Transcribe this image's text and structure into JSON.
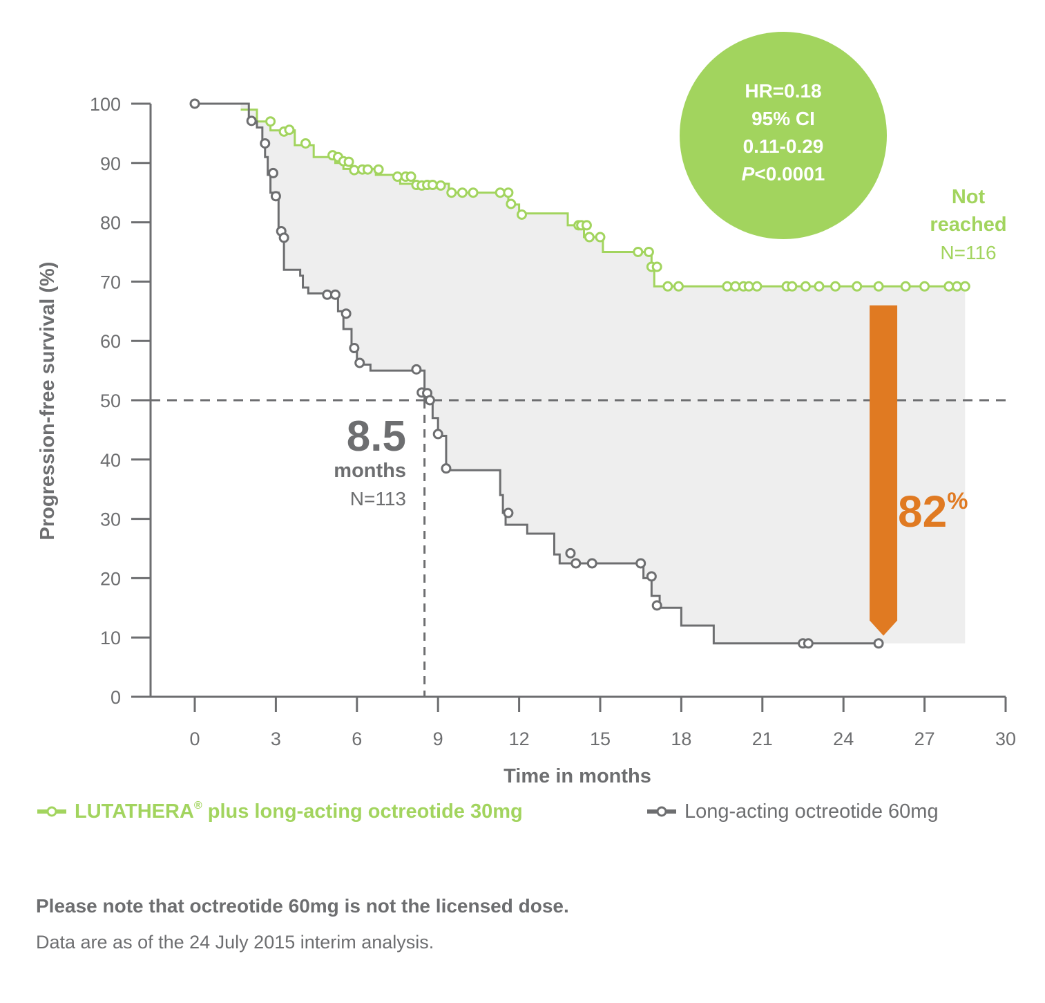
{
  "chart_data": {
    "type": "line",
    "subtype": "kaplan-meier step",
    "xlabel": "Time in months",
    "ylabel": "Progression-free survival (%)",
    "xlim": [
      -2,
      30
    ],
    "ylim": [
      0,
      100
    ],
    "x_ticks": [
      0,
      3,
      6,
      9,
      12,
      15,
      18,
      21,
      24,
      27,
      30
    ],
    "y_ticks": [
      0,
      10,
      20,
      30,
      40,
      50,
      60,
      70,
      80,
      90,
      100
    ],
    "reference_line_y": 50,
    "series": [
      {
        "name": "LUTATHERA® plus long-acting octreotide 30mg",
        "color": "#a2d45e",
        "steps": [
          [
            0,
            100
          ],
          [
            1.7,
            99
          ],
          [
            2.3,
            97
          ],
          [
            2.8,
            95.5
          ],
          [
            3.7,
            93
          ],
          [
            4.4,
            91
          ],
          [
            5.2,
            90
          ],
          [
            5.5,
            89
          ],
          [
            6.7,
            88
          ],
          [
            7.6,
            86.5
          ],
          [
            9.4,
            85
          ],
          [
            11.6,
            83
          ],
          [
            12.0,
            81.5
          ],
          [
            13.8,
            79.5
          ],
          [
            14.4,
            77.5
          ],
          [
            15.1,
            75
          ],
          [
            16.9,
            72.5
          ],
          [
            17.0,
            69.2
          ],
          [
            28.5,
            69.2
          ]
        ],
        "censor_marks": [
          [
            2.8,
            97
          ],
          [
            3.3,
            95.3
          ],
          [
            3.5,
            95.6
          ],
          [
            4.1,
            93.3
          ],
          [
            5.1,
            91.3
          ],
          [
            5.3,
            91
          ],
          [
            5.5,
            90.3
          ],
          [
            5.7,
            90.2
          ],
          [
            5.9,
            88.8
          ],
          [
            6.2,
            88.9
          ],
          [
            6.4,
            88.9
          ],
          [
            6.8,
            88.9
          ],
          [
            7.5,
            87.7
          ],
          [
            7.8,
            87.7
          ],
          [
            8.0,
            87.7
          ],
          [
            8.2,
            86.3
          ],
          [
            8.4,
            86.2
          ],
          [
            8.6,
            86.3
          ],
          [
            8.8,
            86.3
          ],
          [
            9.1,
            86.2
          ],
          [
            9.5,
            85
          ],
          [
            9.9,
            85
          ],
          [
            10.3,
            85
          ],
          [
            11.3,
            85
          ],
          [
            11.6,
            85
          ],
          [
            11.7,
            83.1
          ],
          [
            12.1,
            81.3
          ],
          [
            14.2,
            79.5
          ],
          [
            14.3,
            79.5
          ],
          [
            14.5,
            79.5
          ],
          [
            14.6,
            77.5
          ],
          [
            15.0,
            77.5
          ],
          [
            16.4,
            75
          ],
          [
            16.8,
            75
          ],
          [
            16.9,
            72.5
          ],
          [
            17.1,
            72.5
          ],
          [
            17.5,
            69.2
          ],
          [
            17.9,
            69.2
          ],
          [
            19.7,
            69.2
          ],
          [
            20.0,
            69.2
          ],
          [
            20.3,
            69.2
          ],
          [
            20.5,
            69.2
          ],
          [
            20.8,
            69.2
          ],
          [
            21.9,
            69.2
          ],
          [
            22.1,
            69.2
          ],
          [
            22.6,
            69.2
          ],
          [
            23.1,
            69.2
          ],
          [
            23.7,
            69.2
          ],
          [
            24.5,
            69.2
          ],
          [
            25.3,
            69.2
          ],
          [
            26.3,
            69.2
          ],
          [
            27.0,
            69.2
          ],
          [
            27.9,
            69.2
          ],
          [
            28.2,
            69.2
          ],
          [
            28.5,
            69.2
          ]
        ]
      },
      {
        "name": "Long-acting octreotide 60mg",
        "color": "#6d6e70",
        "steps": [
          [
            0,
            100
          ],
          [
            1.7,
            100
          ],
          [
            2.0,
            97
          ],
          [
            2.3,
            96
          ],
          [
            2.5,
            93
          ],
          [
            2.6,
            91
          ],
          [
            2.7,
            88
          ],
          [
            2.8,
            85
          ],
          [
            3.1,
            78
          ],
          [
            3.3,
            72
          ],
          [
            3.9,
            71
          ],
          [
            4.0,
            69
          ],
          [
            4.2,
            68
          ],
          [
            4.8,
            67.5
          ],
          [
            5.3,
            65
          ],
          [
            5.5,
            62
          ],
          [
            5.8,
            59
          ],
          [
            6.0,
            56
          ],
          [
            6.5,
            55
          ],
          [
            8.2,
            55
          ],
          [
            8.5,
            50
          ],
          [
            8.8,
            47
          ],
          [
            9.0,
            44
          ],
          [
            9.3,
            38.2
          ],
          [
            11.3,
            34
          ],
          [
            11.4,
            31
          ],
          [
            11.5,
            29
          ],
          [
            12.3,
            27.5
          ],
          [
            13.3,
            24
          ],
          [
            13.5,
            22.5
          ],
          [
            16.3,
            22.5
          ],
          [
            16.6,
            20
          ],
          [
            16.9,
            17
          ],
          [
            17.2,
            15
          ],
          [
            18.0,
            12
          ],
          [
            19.2,
            9
          ],
          [
            25.3,
            9
          ]
        ],
        "censor_marks": [
          [
            0,
            100
          ],
          [
            2.1,
            97.1
          ],
          [
            2.6,
            93.3
          ],
          [
            2.9,
            88.3
          ],
          [
            3.0,
            84.4
          ],
          [
            3.2,
            78.5
          ],
          [
            3.3,
            77.4
          ],
          [
            4.9,
            67.8
          ],
          [
            5.2,
            67.8
          ],
          [
            5.6,
            64.6
          ],
          [
            5.9,
            58.8
          ],
          [
            6.1,
            56.3
          ],
          [
            8.2,
            55.2
          ],
          [
            8.4,
            51.3
          ],
          [
            8.6,
            51.2
          ],
          [
            8.7,
            50
          ],
          [
            9.0,
            44.3
          ],
          [
            9.3,
            38.5
          ],
          [
            11.6,
            31
          ],
          [
            13.9,
            24.2
          ],
          [
            14.1,
            22.5
          ],
          [
            14.7,
            22.5
          ],
          [
            16.5,
            22.5
          ],
          [
            16.9,
            20.3
          ],
          [
            17.1,
            15.4
          ],
          [
            22.5,
            9
          ],
          [
            22.7,
            9
          ],
          [
            25.3,
            9
          ]
        ]
      }
    ],
    "hr_box": {
      "line1": "HR=0.18",
      "line2": "95% CI",
      "line3": "0.11-0.29",
      "p_italic": "P",
      "p_rest": "<0.0001"
    },
    "median_gray": {
      "value": "8.5",
      "unit": "months",
      "n": "N=113",
      "x": 8.5
    },
    "median_green": {
      "line1": "Not",
      "line2": "reached",
      "n": "N=116"
    },
    "reduction": {
      "value": "82",
      "unit": "%",
      "color": "#e07a22",
      "x": 25.3,
      "y_top": 66,
      "y_bottom": 10.3
    }
  },
  "legend": {
    "green": {
      "label": "LUTATHERA",
      "sup": "®",
      "rest": " plus long-acting octreotide 30mg"
    },
    "gray": {
      "label": "Long-acting octreotide 60mg"
    }
  },
  "note": "Please note that octreotide 60mg is not the licensed dose.",
  "footnote": "Data are as of the 24 July 2015 interim analysis."
}
